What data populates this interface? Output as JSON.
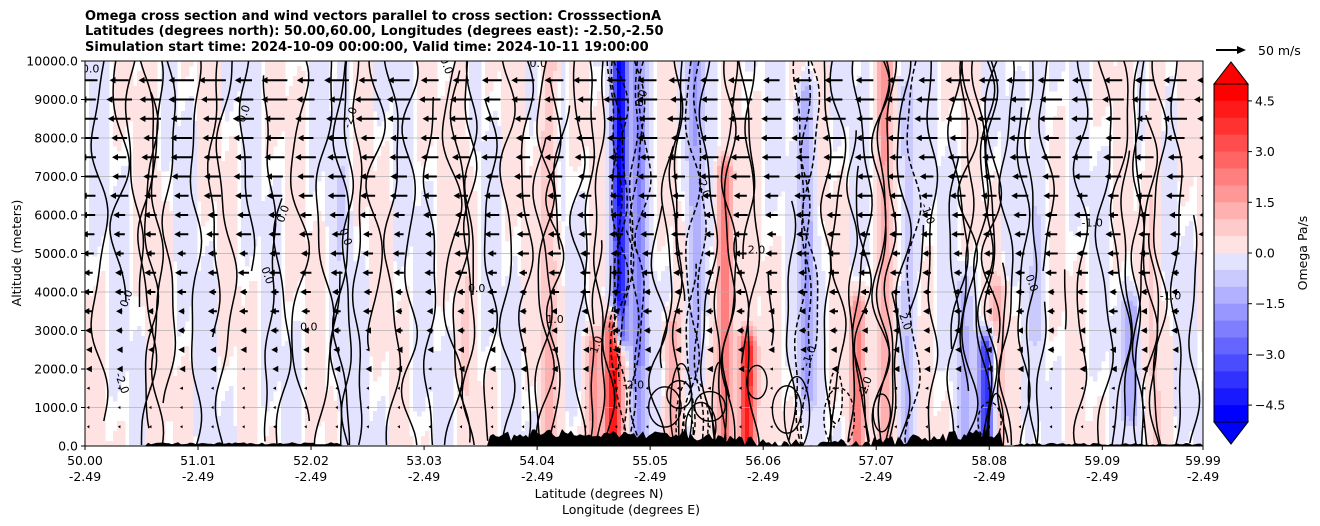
{
  "chart_data": {
    "type": "heatmap",
    "title_lines": [
      "Omega cross section and wind vectors parallel to cross section: CrosssectionA",
      "Latitudes (degrees north): 50.00,60.00, Longitudes (degrees east): -2.50,-2.50",
      "Simulation start time: 2024-10-09 00:00:00, Valid time: 2024-10-11 19:00:00"
    ],
    "ylabel": "Altitude (meters)",
    "xlabel_1": "Latitude (degrees N)",
    "xlabel_2": "Longitude (degrees E)",
    "ylim": [
      0,
      10000
    ],
    "y_ticks": [
      0,
      1000,
      2000,
      3000,
      4000,
      5000,
      6000,
      7000,
      8000,
      9000,
      10000
    ],
    "y_tick_labels": [
      "0.0",
      "1000.0",
      "2000.0",
      "3000.0",
      "4000.0",
      "5000.0",
      "6000.0",
      "7000.0",
      "8000.0",
      "9000.0",
      "10000.0"
    ],
    "x_ticks": [
      {
        "lat": "50.00",
        "lon": "-2.49"
      },
      {
        "lat": "51.01",
        "lon": "-2.49"
      },
      {
        "lat": "52.02",
        "lon": "-2.49"
      },
      {
        "lat": "53.03",
        "lon": "-2.49"
      },
      {
        "lat": "54.04",
        "lon": "-2.49"
      },
      {
        "lat": "55.05",
        "lon": "-2.49"
      },
      {
        "lat": "56.06",
        "lon": "-2.49"
      },
      {
        "lat": "57.07",
        "lon": "-2.49"
      },
      {
        "lat": "58.08",
        "lon": "-2.49"
      },
      {
        "lat": "59.09",
        "lon": "-2.49"
      },
      {
        "lat": "59.99",
        "lon": "-2.49"
      }
    ],
    "colorbar": {
      "label": "Omega Pa/s",
      "min": -5.0,
      "max": 5.0,
      "step": 0.5,
      "extend": "both",
      "tick_values": [
        4.5,
        3.0,
        1.5,
        0.0,
        -1.5,
        -3.0,
        -4.5
      ],
      "tick_labels": [
        "4.5",
        "3.0",
        "1.5",
        "0.0",
        "−1.5",
        "−3.0",
        "−4.5"
      ]
    },
    "colors": {
      "positive": "#ff0000",
      "negative": "#0000ff",
      "contour": "#000000",
      "terrain": "#000000",
      "grid": "#b0b0b0"
    },
    "vector_key": {
      "label": "50 m/s",
      "speed": 50
    },
    "wind_direction": "westward (toward lower latitude)",
    "contour_labels": [
      "0.0",
      "0.0",
      "0.0",
      "0.0",
      "0.0",
      "0.0",
      "0.0",
      "0.0",
      "0.0",
      "0.0",
      "0.0",
      "0.0",
      "1.0",
      "1.0",
      "2.0",
      "2.0",
      "-1.0",
      "-1.0",
      "-1.0",
      "-2.0",
      "-2.0",
      "-2.0",
      "-2.0",
      "-2.0",
      "-1.0"
    ],
    "omega_features": [
      {
        "lat": 54.78,
        "alt_bottom": 3000,
        "alt_top": 10000,
        "omega": -4.5
      },
      {
        "lat": 54.95,
        "alt_bottom": 0,
        "alt_top": 10000,
        "omega": -2.0
      },
      {
        "lat": 55.45,
        "alt_bottom": 2000,
        "alt_top": 10000,
        "omega": -1.5
      },
      {
        "lat": 56.45,
        "alt_bottom": 1500,
        "alt_top": 9000,
        "omega": -1.5
      },
      {
        "lat": 57.35,
        "alt_bottom": 0,
        "alt_top": 9000,
        "omega": -1.0
      },
      {
        "lat": 57.85,
        "alt_bottom": 0,
        "alt_top": 4000,
        "omega": -1.0
      },
      {
        "lat": 58.05,
        "alt_bottom": 0,
        "alt_top": 2500,
        "omega": -4.0
      },
      {
        "lat": 59.35,
        "alt_bottom": 1000,
        "alt_top": 3500,
        "omega": -1.5
      },
      {
        "lat": 58.5,
        "alt_bottom": 3000,
        "alt_top": 10000,
        "omega": -0.5
      },
      {
        "lat": 54.72,
        "alt_bottom": 0,
        "alt_top": 3000,
        "omega": 4.5
      },
      {
        "lat": 54.55,
        "alt_bottom": 0,
        "alt_top": 2500,
        "omega": 2.0
      },
      {
        "lat": 54.15,
        "alt_bottom": 0,
        "alt_top": 10000,
        "omega": 1.0
      },
      {
        "lat": 55.25,
        "alt_bottom": 0,
        "alt_top": 3000,
        "omega": 1.5
      },
      {
        "lat": 55.72,
        "alt_bottom": 0,
        "alt_top": 7000,
        "omega": 2.5
      },
      {
        "lat": 55.92,
        "alt_bottom": 0,
        "alt_top": 2500,
        "omega": 4.5
      },
      {
        "lat": 56.9,
        "alt_bottom": 0,
        "alt_top": 3500,
        "omega": 2.0
      },
      {
        "lat": 57.15,
        "alt_bottom": 0,
        "alt_top": 10000,
        "omega": 1.5
      },
      {
        "lat": 58.15,
        "alt_bottom": 0,
        "alt_top": 4000,
        "omega": 1.0
      },
      {
        "lat": 59.55,
        "alt_bottom": 0,
        "alt_top": 10000,
        "omega": 0.5
      },
      {
        "lat": 50.6,
        "alt_bottom": 0,
        "alt_top": 10000,
        "omega": 0.3
      },
      {
        "lat": 52.3,
        "alt_bottom": 0,
        "alt_top": 10000,
        "omega": -0.3
      },
      {
        "lat": 53.4,
        "alt_bottom": 0,
        "alt_top": 10000,
        "omega": 0.3
      }
    ]
  }
}
